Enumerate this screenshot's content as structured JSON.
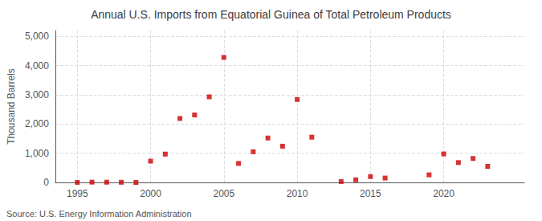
{
  "chart_data": {
    "type": "scatter",
    "title": "Annual U.S. Imports from Equatorial Guinea of Total Petroleum Products",
    "ylabel": "Thousand Barrels",
    "source": "Source: U.S. Energy Information Administration",
    "x": [
      1995,
      1996,
      1997,
      1998,
      1999,
      2000,
      2001,
      2002,
      2003,
      2004,
      2005,
      2006,
      2007,
      2008,
      2009,
      2010,
      2011,
      2013,
      2014,
      2015,
      2016,
      2019,
      2020,
      2021,
      2022,
      2023
    ],
    "values": [
      2,
      10,
      8,
      5,
      0,
      730,
      970,
      2190,
      2310,
      2930,
      4280,
      650,
      1050,
      1520,
      1240,
      2840,
      1550,
      30,
      90,
      200,
      150,
      260,
      975,
      680,
      820,
      550
    ],
    "color": "#cc0000",
    "marker": "square",
    "xlim": [
      1993.5,
      2025.5
    ],
    "xticks": [
      1995,
      2000,
      2005,
      2010,
      2015,
      2020
    ],
    "ylim": [
      0,
      5200
    ],
    "yticks": [
      0,
      {
        "value": 1000,
        "label": "1,000"
      },
      {
        "value": 2000,
        "label": "2,000"
      },
      {
        "value": 3000,
        "label": "3,000"
      },
      {
        "value": 4000,
        "label": "4,000"
      },
      {
        "value": 5000,
        "label": "5,000"
      }
    ],
    "grid": true
  }
}
